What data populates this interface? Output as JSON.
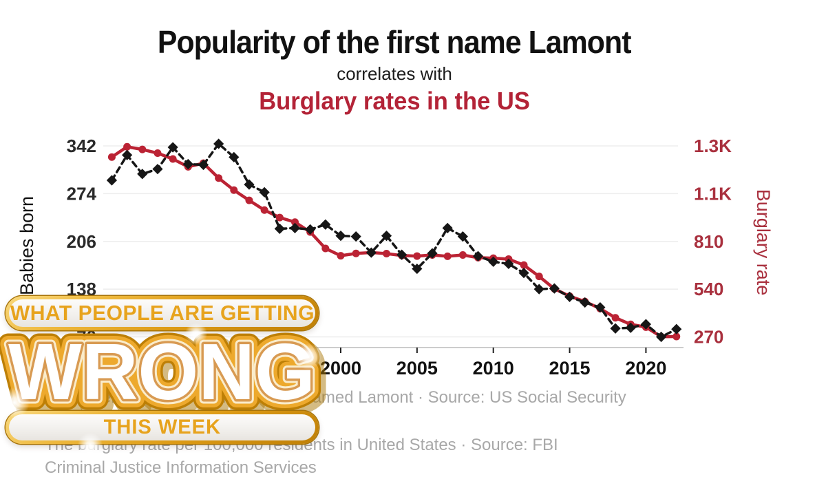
{
  "titles": {
    "main": "Popularity of the first name Lamont",
    "connector": "correlates with",
    "secondary": "Burglary rates in the US",
    "secondary_color": "#b32337"
  },
  "chart_data": {
    "type": "line",
    "title": "Popularity of the first name Lamont correlates with Burglary rates in the US",
    "x": [
      1985,
      1986,
      1987,
      1988,
      1989,
      1990,
      1991,
      1992,
      1993,
      1994,
      1995,
      1996,
      1997,
      1998,
      1999,
      2000,
      2001,
      2002,
      2003,
      2004,
      2005,
      2006,
      2007,
      2008,
      2009,
      2010,
      2011,
      2012,
      2013,
      2014,
      2015,
      2016,
      2017,
      2018,
      2019,
      2020,
      2021,
      2022
    ],
    "series": [
      {
        "name": "Burglary rate",
        "axis": "right",
        "color": "#bb2334",
        "line_style": "solid",
        "marker": "circle",
        "values": [
          1287,
          1345,
          1330,
          1309,
          1276,
          1232,
          1252,
          1168,
          1100,
          1042,
          987,
          945,
          919,
          863,
          770,
          729,
          742,
          747,
          741,
          730,
          727,
          733,
          726,
          733,
          718,
          715,
          710,
          676,
          612,
          542,
          500,
          470,
          430,
          378,
          341,
          325,
          271,
          272
        ]
      },
      {
        "name": "Babies born",
        "axis": "left",
        "color": "#161616",
        "line_style": "dashed",
        "marker": "diamond",
        "values": [
          293,
          329,
          302,
          309,
          340,
          316,
          315,
          345,
          326,
          287,
          276,
          224,
          225,
          223,
          230,
          214,
          213,
          190,
          214,
          187,
          167,
          189,
          225,
          213,
          185,
          177,
          174,
          161,
          138,
          139,
          127,
          119,
          112,
          82,
          83,
          88,
          70,
          81
        ]
      }
    ],
    "left_axis": {
      "label": "Babies born",
      "tick_labels": [
        "342",
        "274",
        "206",
        "138",
        "70"
      ],
      "tick_values": [
        342,
        274,
        206,
        138,
        70
      ],
      "range": [
        70,
        342
      ],
      "color": "#2a2a2a"
    },
    "right_axis": {
      "label": "Burglary rate",
      "tick_labels": [
        "1.3K",
        "1.1K",
        "810",
        "540",
        "270"
      ],
      "tick_values": [
        1350,
        1080,
        810,
        540,
        270
      ],
      "range": [
        270,
        1350
      ],
      "color": "#a9303e"
    },
    "x_axis": {
      "tick_labels": [
        "2000",
        "2005",
        "2010",
        "2015",
        "2020"
      ],
      "tick_values": [
        2000,
        2005,
        2010,
        2015,
        2020
      ],
      "range": [
        1985,
        2022
      ]
    },
    "grid": true,
    "legend": "none"
  },
  "captions": {
    "babies_caption": "The number of babies born in the US named Lamont · Source: US Social Security",
    "burglary_caption_line1": "The burglary rate per 100,000 residents in United States · Source: FBI",
    "burglary_caption_line2": "Criminal Justice Information Services"
  },
  "overlay": {
    "line1": "WHAT PEOPLE ARE GETTING",
    "wrong": "WRONG",
    "line2": "THIS WEEK",
    "gold": "#e7a31d"
  }
}
